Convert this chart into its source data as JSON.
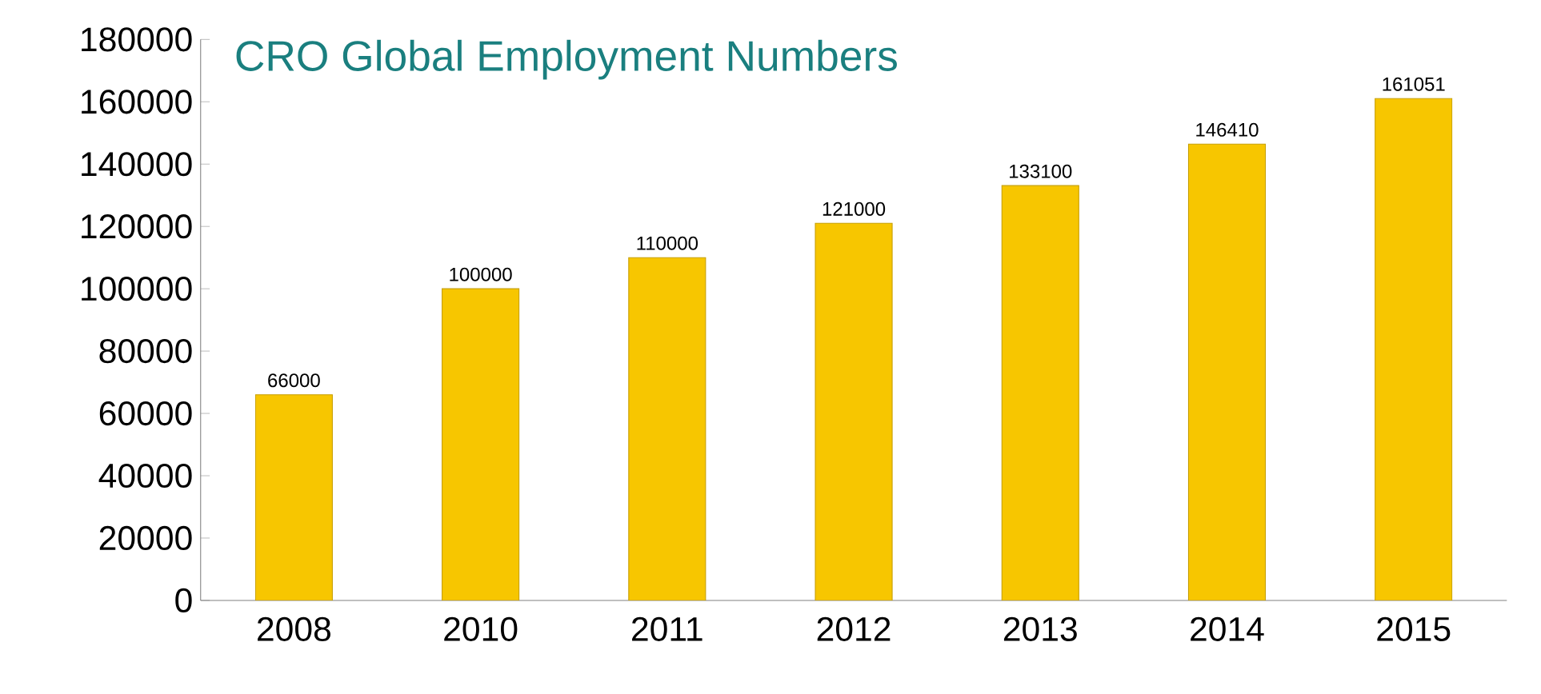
{
  "chart_data": {
    "type": "bar",
    "title": "CRO Global Employment Numbers",
    "categories": [
      "2008",
      "2010",
      "2011",
      "2012",
      "2013",
      "2014",
      "2015"
    ],
    "values": [
      66000,
      100000,
      110000,
      121000,
      133100,
      146410,
      161051
    ],
    "color": "#f7c600",
    "data_labels": true,
    "ylim": [
      0,
      180000
    ],
    "yticks": [
      0,
      20000,
      40000,
      60000,
      80000,
      100000,
      120000,
      140000,
      160000,
      180000
    ],
    "grid": false
  }
}
